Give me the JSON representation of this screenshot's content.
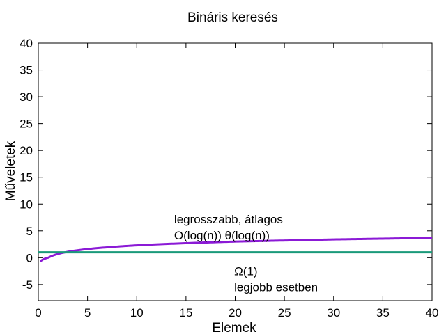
{
  "chart_data": {
    "type": "line",
    "title": "Bináris keresés",
    "xlabel": "Elemek",
    "ylabel": "Műveletek",
    "xlim": [
      0,
      40
    ],
    "ylim": [
      -8,
      40
    ],
    "xticks": [
      0,
      5,
      10,
      15,
      20,
      25,
      30,
      35,
      40
    ],
    "yticks": [
      -5,
      0,
      5,
      10,
      15,
      20,
      25,
      30,
      35,
      40
    ],
    "grid": false,
    "legend": "none",
    "series": [
      {
        "color": "#8b1ad6",
        "function": "log",
        "x": [
          0.2,
          0.5,
          1,
          2,
          3,
          5,
          7.5,
          10,
          15,
          20,
          25,
          30,
          35,
          40
        ],
        "y": [
          -0.7,
          -0.3,
          0.0,
          0.7,
          1.1,
          1.6,
          2.0,
          2.3,
          2.7,
          3.0,
          3.2,
          3.4,
          3.55,
          3.7
        ]
      },
      {
        "color": "#1a9a7a",
        "x": [
          0,
          40
        ],
        "y": [
          1,
          1
        ]
      }
    ],
    "annotations": [
      {
        "text": "legrosszabb, átlagos",
        "x": 13.8,
        "y": 7.2
      },
      {
        "text": "O(log(n))  θ(log(n))",
        "x": 13.8,
        "y": 4.2
      },
      {
        "text": "Ω(1)",
        "x": 19.9,
        "y": -2.5
      },
      {
        "text": "legjobb esetben",
        "x": 19.9,
        "y": -5.5
      }
    ]
  }
}
